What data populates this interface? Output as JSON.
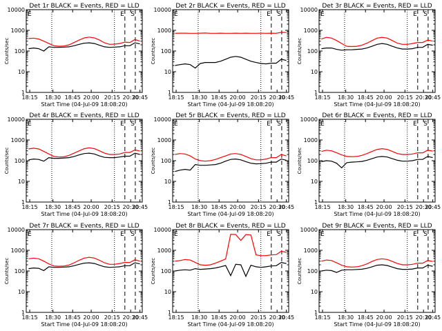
{
  "chart_data": [
    {
      "type": "line",
      "title": "Det 1r BLACK = Events, RED = LLD",
      "xlabel": "Start Time (04-Jul-09 18:08:20)",
      "ylabel": "Counts/sec",
      "yscale": "log",
      "ylim": [
        1,
        10000
      ],
      "xtick_labels": [
        "18:15",
        "18:30",
        "18:45",
        "20:00",
        "20:15",
        "20:30",
        "20:45"
      ],
      "ytick_labels": [
        "1",
        "10",
        "100",
        "1000",
        "10000"
      ],
      "markers": [
        "E",
        "S"
      ],
      "series": [
        {
          "color": "#ff0000",
          "values": [
            400,
            420,
            380,
            300,
            230,
            180,
            170,
            175,
            200,
            260,
            340,
            430,
            470,
            430,
            340,
            250,
            210,
            215,
            230,
            270,
            260,
            360,
            300
          ]
        },
        {
          "color": "#000000",
          "values": [
            130,
            140,
            130,
            100,
            160,
            150,
            150,
            155,
            160,
            180,
            210,
            240,
            250,
            230,
            190,
            160,
            150,
            155,
            160,
            180,
            180,
            250,
            220
          ]
        }
      ]
    },
    {
      "type": "line",
      "title": "Det 2r BLACK = Events, RED = LLD",
      "xlabel": "Start Time (04-Jul-09 18:08:20)",
      "ylabel": "Counts/sec",
      "yscale": "log",
      "ylim": [
        1,
        10000
      ],
      "xtick_labels": [
        "18:15",
        "18:30",
        "18:45",
        "20:00",
        "20:15",
        "20:30",
        "20:45"
      ],
      "ytick_labels": [
        "1",
        "10",
        "100",
        "1000",
        "10000"
      ],
      "markers": [
        "E",
        "S"
      ],
      "series": [
        {
          "color": "#ff0000",
          "values": [
            720,
            730,
            730,
            720,
            720,
            730,
            740,
            720,
            720,
            730,
            720,
            720,
            730,
            720,
            730,
            720,
            720,
            730,
            720,
            730,
            720,
            800,
            780
          ]
        },
        {
          "color": "#000000",
          "values": [
            20,
            22,
            24,
            22,
            15,
            25,
            28,
            28,
            28,
            32,
            40,
            50,
            55,
            50,
            40,
            32,
            28,
            25,
            24,
            26,
            26,
            40,
            35
          ]
        }
      ]
    },
    {
      "type": "line",
      "title": "Det 3r BLACK = Events, RED = LLD",
      "xlabel": "Start Time (04-Jul-09 18:08:20)",
      "ylabel": "Counts/sec",
      "yscale": "log",
      "ylim": [
        1,
        10000
      ],
      "xtick_labels": [
        "18:15",
        "18:30",
        "18:45",
        "20:00",
        "20:15",
        "20:30",
        "20:45"
      ],
      "ytick_labels": [
        "1",
        "10",
        "100",
        "1000",
        "10000"
      ],
      "markers": [
        "E",
        "S"
      ],
      "series": [
        {
          "color": "#ff0000",
          "values": [
            380,
            460,
            420,
            320,
            230,
            170,
            165,
            170,
            190,
            240,
            320,
            420,
            460,
            420,
            320,
            240,
            210,
            210,
            230,
            260,
            260,
            340,
            300
          ]
        },
        {
          "color": "#000000",
          "values": [
            130,
            140,
            140,
            120,
            110,
            115,
            115,
            120,
            125,
            140,
            170,
            210,
            230,
            210,
            170,
            140,
            125,
            125,
            130,
            150,
            150,
            210,
            190
          ]
        }
      ]
    },
    {
      "type": "line",
      "title": "Det 4r BLACK = Events, RED = LLD",
      "xlabel": "Start Time (04-Jul-09 18:08:20)",
      "ylabel": "Counts/sec",
      "yscale": "log",
      "ylim": [
        1,
        10000
      ],
      "xtick_labels": [
        "18:15",
        "18:30",
        "18:45",
        "20:00",
        "20:15",
        "20:30",
        "20:45"
      ],
      "ytick_labels": [
        "1",
        "10",
        "100",
        "1000",
        "10000"
      ],
      "markers": [
        "E",
        "S"
      ],
      "series": [
        {
          "color": "#ff0000",
          "values": [
            370,
            400,
            370,
            280,
            210,
            160,
            150,
            155,
            180,
            230,
            300,
            380,
            420,
            380,
            300,
            230,
            200,
            200,
            210,
            250,
            250,
            330,
            290
          ]
        },
        {
          "color": "#000000",
          "values": [
            110,
            120,
            115,
            95,
            140,
            130,
            130,
            135,
            140,
            160,
            190,
            220,
            230,
            210,
            170,
            145,
            140,
            140,
            150,
            165,
            165,
            230,
            200
          ]
        }
      ]
    },
    {
      "type": "line",
      "title": "Det 5r BLACK = Events, RED = LLD",
      "xlabel": "Start Time (04-Jul-09 18:08:20)",
      "ylabel": "Counts/sec",
      "yscale": "log",
      "ylim": [
        1,
        10000
      ],
      "xtick_labels": [
        "18:15",
        "18:30",
        "18:45",
        "20:00",
        "20:15",
        "20:30",
        "20:45"
      ],
      "ytick_labels": [
        "1",
        "10",
        "100",
        "1000",
        "10000"
      ],
      "markers": [
        "E",
        "S"
      ],
      "series": [
        {
          "color": "#ff0000",
          "values": [
            200,
            220,
            210,
            170,
            120,
            100,
            95,
            100,
            115,
            140,
            170,
            210,
            220,
            200,
            160,
            125,
            110,
            110,
            120,
            140,
            140,
            200,
            170
          ]
        },
        {
          "color": "#000000",
          "values": [
            30,
            35,
            38,
            35,
            65,
            60,
            60,
            62,
            65,
            75,
            95,
            115,
            120,
            110,
            90,
            75,
            70,
            72,
            75,
            85,
            85,
            120,
            105
          ]
        }
      ]
    },
    {
      "type": "line",
      "title": "Det 6r BLACK = Events, RED = LLD",
      "xlabel": "Start Time (04-Jul-09 18:08:20)",
      "ylabel": "Counts/sec",
      "yscale": "log",
      "ylim": [
        1,
        10000
      ],
      "xtick_labels": [
        "18:15",
        "18:30",
        "18:45",
        "20:00",
        "20:15",
        "20:30",
        "20:45"
      ],
      "ytick_labels": [
        "1",
        "10",
        "100",
        "1000",
        "10000"
      ],
      "markers": [
        "E",
        "S"
      ],
      "series": [
        {
          "color": "#ff0000",
          "values": [
            280,
            320,
            300,
            240,
            190,
            160,
            155,
            160,
            180,
            220,
            280,
            350,
            380,
            350,
            280,
            220,
            200,
            200,
            210,
            240,
            240,
            320,
            290
          ]
        },
        {
          "color": "#000000",
          "values": [
            90,
            100,
            95,
            75,
            45,
            80,
            85,
            88,
            92,
            105,
            125,
            150,
            160,
            150,
            125,
            105,
            95,
            95,
            100,
            115,
            115,
            160,
            140
          ]
        }
      ]
    },
    {
      "type": "line",
      "title": "Det 7r BLACK = Events, RED = LLD",
      "xlabel": "Start Time (04-Jul-09 18:08:20)",
      "ylabel": "Counts/sec",
      "yscale": "log",
      "ylim": [
        1,
        10000
      ],
      "xtick_labels": [
        "18:15",
        "18:30",
        "18:45",
        "20:00",
        "20:15",
        "20:30",
        "20:45"
      ],
      "ytick_labels": [
        "1",
        "10",
        "100",
        "1000",
        "10000"
      ],
      "markers": [
        "E",
        "S"
      ],
      "series": [
        {
          "color": "#ff0000",
          "values": [
            390,
            420,
            390,
            300,
            220,
            175,
            170,
            175,
            195,
            250,
            330,
            420,
            460,
            420,
            330,
            250,
            210,
            210,
            230,
            260,
            260,
            350,
            300
          ]
        },
        {
          "color": "#000000",
          "values": [
            130,
            140,
            135,
            105,
            160,
            150,
            150,
            155,
            160,
            180,
            210,
            240,
            250,
            230,
            190,
            160,
            150,
            155,
            160,
            180,
            180,
            250,
            220
          ]
        }
      ]
    },
    {
      "type": "line",
      "title": "Det 8r BLACK = Events, RED = LLD",
      "xlabel": "Start Time (04-Jul-09 18:08:20)",
      "ylabel": "Counts/sec",
      "yscale": "log",
      "ylim": [
        1,
        10000
      ],
      "xtick_labels": [
        "18:15",
        "18:30",
        "18:45",
        "20:00",
        "20:15",
        "20:30",
        "20:45"
      ],
      "ytick_labels": [
        "1",
        "10",
        "100",
        "1000",
        "10000"
      ],
      "markers": [
        "E",
        "S"
      ],
      "series": [
        {
          "color": "#ff0000",
          "values": [
            300,
            320,
            360,
            340,
            260,
            200,
            190,
            200,
            240,
            300,
            380,
            6000,
            5800,
            3000,
            5800,
            5500,
            600,
            550,
            560,
            600,
            620,
            900,
            800
          ]
        },
        {
          "color": "#000000",
          "values": [
            100,
            110,
            115,
            110,
            130,
            120,
            125,
            130,
            140,
            160,
            185,
            60,
            210,
            200,
            55,
            190,
            160,
            150,
            160,
            175,
            180,
            260,
            230
          ]
        }
      ]
    },
    {
      "type": "line",
      "title": "Det 9r BLACK = Events, RED = LLD",
      "xlabel": "Start Time (04-Jul-09 18:08:20)",
      "ylabel": "Counts/sec",
      "yscale": "log",
      "ylim": [
        1,
        10000
      ],
      "xtick_labels": [
        "18:15",
        "18:30",
        "18:45",
        "20:00",
        "20:15",
        "20:30",
        "20:45"
      ],
      "ytick_labels": [
        "1",
        "10",
        "100",
        "1000",
        "10000"
      ],
      "markers": [
        "E",
        "S"
      ],
      "series": [
        {
          "color": "#ff0000",
          "values": [
            300,
            340,
            320,
            250,
            190,
            160,
            155,
            160,
            180,
            220,
            290,
            360,
            390,
            360,
            290,
            230,
            200,
            200,
            210,
            240,
            240,
            320,
            290
          ]
        },
        {
          "color": "#000000",
          "values": [
            100,
            110,
            105,
            85,
            110,
            115,
            115,
            118,
            122,
            135,
            160,
            190,
            200,
            185,
            155,
            130,
            120,
            120,
            125,
            140,
            140,
            190,
            170
          ]
        }
      ]
    }
  ]
}
